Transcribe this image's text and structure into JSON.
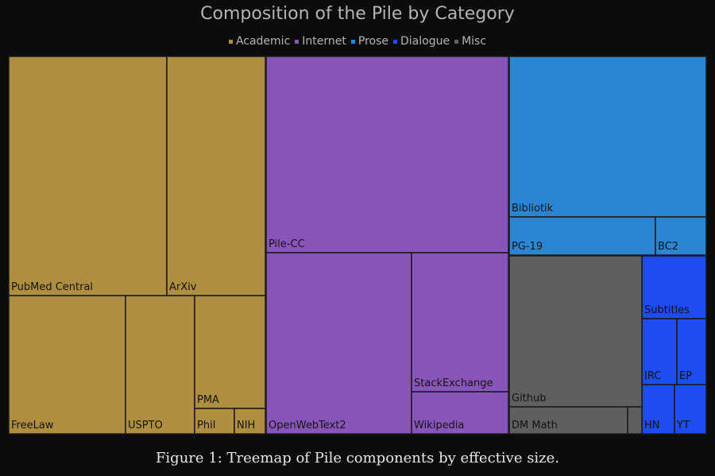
{
  "chart_data": {
    "type": "treemap",
    "title": "Composition of the Pile by Category",
    "legend_position": "top",
    "categories": [
      {
        "name": "Academic",
        "color": "#b08e40"
      },
      {
        "name": "Internet",
        "color": "#8a55b8"
      },
      {
        "name": "Prose",
        "color": "#2b86d2"
      },
      {
        "name": "Dialogue",
        "color": "#1e4cf0"
      },
      {
        "name": "Misc",
        "color": "#5f5f5f"
      }
    ],
    "components": [
      {
        "name": "PubMed Central",
        "category": "Academic",
        "size": 15.0
      },
      {
        "name": "ArXiv",
        "category": "Academic",
        "size": 9.3
      },
      {
        "name": "FreeLaw",
        "category": "Academic",
        "size": 6.3
      },
      {
        "name": "USPTO",
        "category": "Academic",
        "size": 3.7
      },
      {
        "name": "PMA",
        "category": "Academic",
        "size": 2.9
      },
      {
        "name": "Phil",
        "category": "Academic",
        "size": 0.5
      },
      {
        "name": "NIH",
        "category": "Academic",
        "size": 0.4
      },
      {
        "name": "Pile-CC",
        "category": "Internet",
        "size": 18.1
      },
      {
        "name": "OpenWebText2",
        "category": "Internet",
        "size": 10.0
      },
      {
        "name": "StackExchange",
        "category": "Internet",
        "size": 5.1
      },
      {
        "name": "Wikipedia",
        "category": "Internet",
        "size": 1.5
      },
      {
        "name": "Bibliotik",
        "category": "Prose",
        "size": 12.1
      },
      {
        "name": "PG-19",
        "category": "Prose",
        "size": 2.2
      },
      {
        "name": "BC2",
        "category": "Prose",
        "size": 0.8
      },
      {
        "name": "Subtitles",
        "category": "Dialogue",
        "size": 0.6
      },
      {
        "name": "IRC",
        "category": "Dialogue",
        "size": 0.3
      },
      {
        "name": "EP",
        "category": "Dialogue",
        "size": 0.2
      },
      {
        "name": "HN",
        "category": "Dialogue",
        "size": 0.2
      },
      {
        "name": "YT",
        "category": "Dialogue",
        "size": 0.2
      },
      {
        "name": "Github",
        "category": "Misc",
        "size": 7.6
      },
      {
        "name": "DM Math",
        "category": "Misc",
        "size": 1.2
      },
      {
        "name": "",
        "category": "Misc",
        "size": 0.1
      }
    ]
  },
  "caption": "Figure 1: Treemap of Pile components by effective size."
}
